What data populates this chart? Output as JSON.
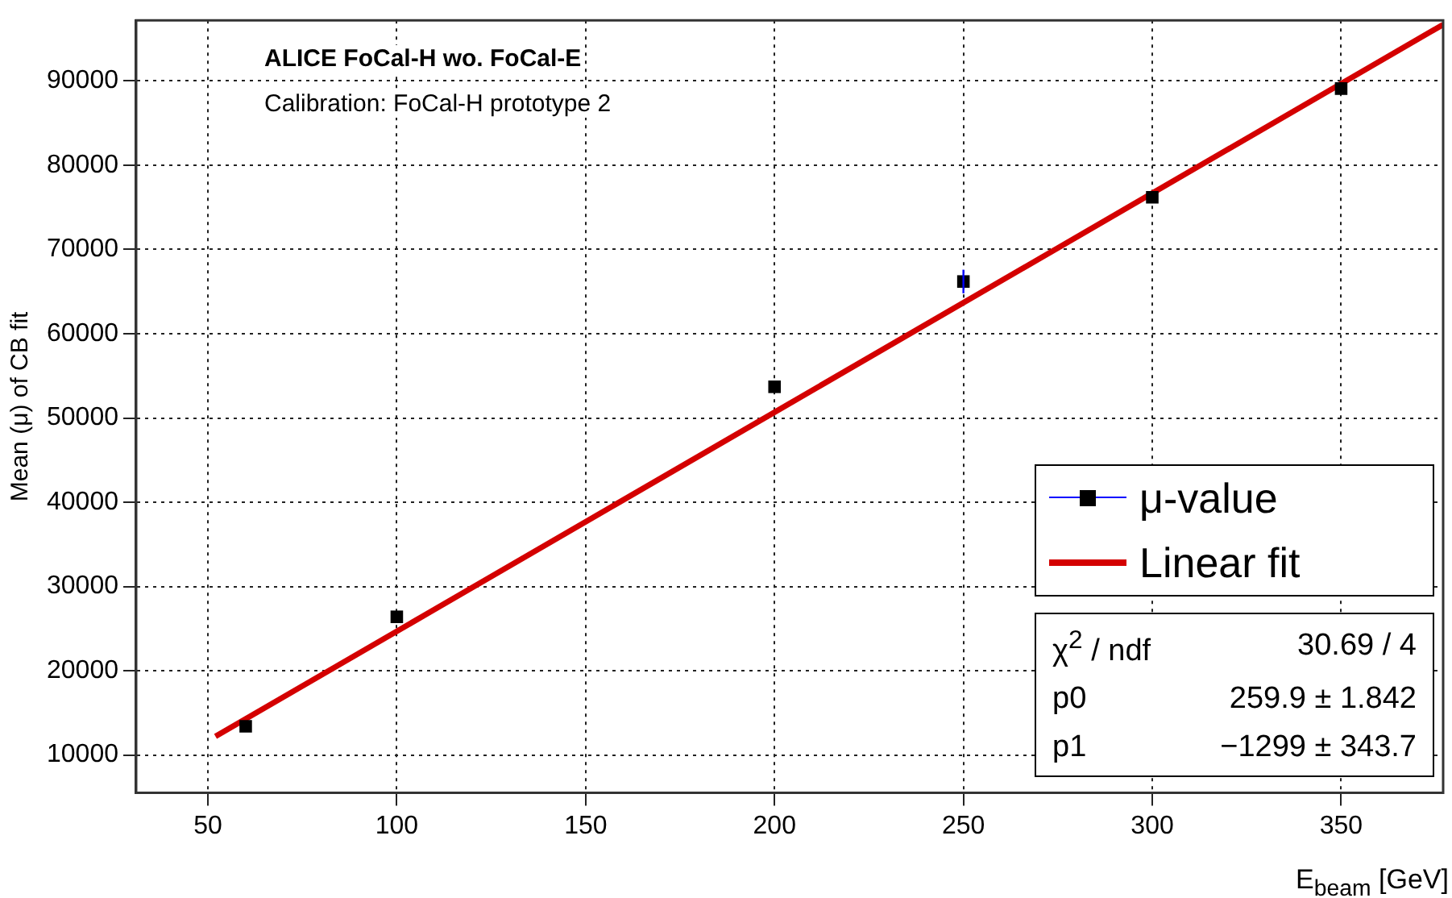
{
  "chart_data": {
    "type": "scatter",
    "title": "ALICE FoCal-H wo. FoCal-E",
    "subtitle": "Calibration: FoCal-H prototype 2",
    "xlabel": "E$_{beam}$ [GeV]",
    "ylabel": "Mean (μ) of CB fit",
    "xlim": [
      31,
      377
    ],
    "xticks": [
      50,
      100,
      150,
      200,
      250,
      300,
      350
    ],
    "ylim": [
      5500,
      97200
    ],
    "yticks": [
      10000,
      20000,
      30000,
      40000,
      50000,
      60000,
      70000,
      80000,
      90000
    ],
    "series": [
      {
        "name": "μ-value",
        "marker": "square",
        "color": "#000000",
        "x": [
          60,
          100,
          200,
          250,
          300,
          350
        ],
        "values": [
          13400,
          26400,
          53700,
          66200,
          76200,
          89100
        ],
        "errors": [
          null,
          null,
          null,
          1400,
          null,
          null
        ]
      },
      {
        "name": "Linear fit",
        "type": "line",
        "marker": "none",
        "color": "#d40000",
        "x": [
          52,
          377
        ],
        "values": [
          12200,
          96700
        ]
      }
    ],
    "annotations": [
      "χ$^{2}$ / ndf",
      "30.69 / 4",
      "p0",
      "259.9 ± 1.842",
      "p1",
      "−1299 ± 343.7"
    ],
    "grid": true,
    "legend": "bottom right",
    "line_style": "solid"
  }
}
